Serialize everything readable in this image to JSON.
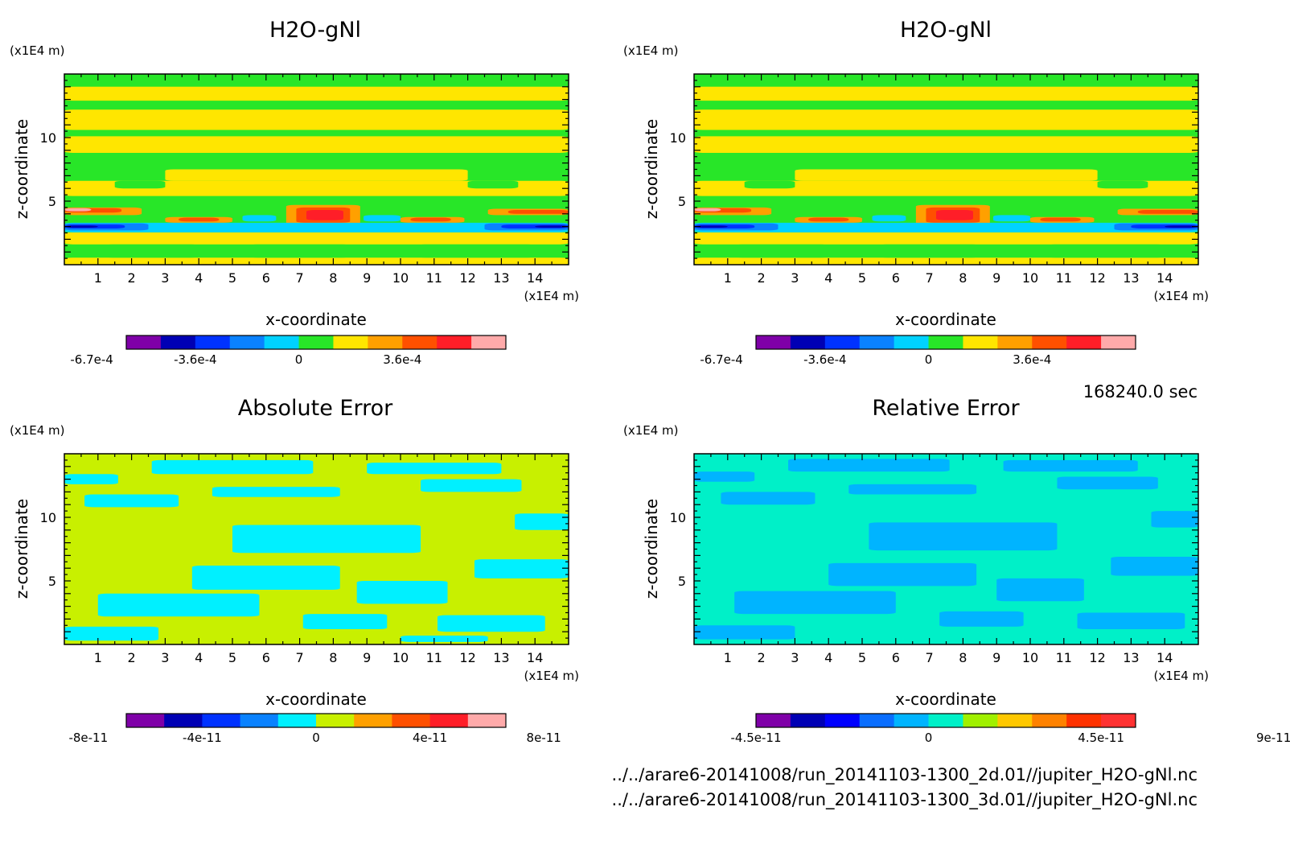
{
  "figure": {
    "time_label": "168240.0 sec",
    "footer": [
      "../../arare6-20141008/run_20141103-1300_2d.01//jupiter_H2O-gNl.nc",
      "../../arare6-20141008/run_20141103-1300_3d.01//jupiter_H2O-gNl.nc"
    ]
  },
  "chart_data": [
    {
      "type": "heatmap",
      "title": "H2O-gNl",
      "xlabel": "x-coordinate",
      "ylabel": "z-coordinate",
      "x_unit": "(x1E4 m)",
      "y_unit": "(x1E4 m)",
      "xlim": [
        0,
        15
      ],
      "ylim": [
        0,
        15
      ],
      "x_ticks": [
        "1",
        "2",
        "3",
        "4",
        "5",
        "6",
        "7",
        "8",
        "9",
        "10",
        "11",
        "12",
        "13",
        "14"
      ],
      "y_ticks": [
        "5",
        "10"
      ],
      "colorbar": {
        "colors": [
          "#7f00a8",
          "#0000b4",
          "#0032ff",
          "#0a82ff",
          "#00d2ff",
          "#28e628",
          "#ffe600",
          "#ffa000",
          "#ff5000",
          "#ff1e28",
          "#ffaaaa"
        ],
        "labels": [
          "-6.7e-4",
          "-3.6e-4",
          "0",
          "3.6e-4"
        ]
      },
      "background": "#28e628",
      "regions": [
        {
          "color": "#ffe600",
          "shapes": [
            [
              0,
              0,
              15,
              0.55
            ],
            [
              0,
              1.6,
              15,
              2.55
            ],
            [
              0,
              5.4,
              15,
              6.6
            ],
            [
              3,
              6.6,
              12,
              7.5
            ],
            [
              0,
              8.8,
              15,
              10.1
            ],
            [
              0,
              10.6,
              15,
              12.2
            ],
            [
              0,
              12.9,
              15,
              14
            ]
          ]
        },
        {
          "color": "#28e628",
          "shapes": [
            [
              1.2,
              0.55,
              4,
              1.6
            ],
            [
              5.5,
              0.55,
              8.5,
              1.6
            ],
            [
              10.5,
              0.55,
              14,
              1.6
            ],
            [
              1.5,
              6.0,
              3,
              6.6
            ],
            [
              12,
              6.0,
              13.5,
              6.6
            ]
          ]
        },
        {
          "color": "#ffa000",
          "shapes": [
            [
              0,
              3.9,
              2.3,
              4.5
            ],
            [
              3.0,
              3.3,
              5.0,
              3.75
            ],
            [
              6.6,
              3.1,
              8.8,
              4.7
            ],
            [
              10.0,
              3.3,
              11.9,
              3.75
            ],
            [
              12.6,
              3.9,
              15,
              4.4
            ]
          ]
        },
        {
          "color": "#ff5000",
          "shapes": [
            [
              0,
              4.1,
              1.7,
              4.45
            ],
            [
              3.4,
              3.4,
              4.6,
              3.7
            ],
            [
              6.9,
              3.3,
              8.5,
              4.5
            ],
            [
              10.3,
              3.4,
              11.5,
              3.7
            ],
            [
              13.2,
              4.0,
              15,
              4.3
            ]
          ]
        },
        {
          "color": "#ff1e28",
          "shapes": [
            [
              7.2,
              3.5,
              8.3,
              4.3
            ]
          ]
        },
        {
          "color": "#ffaaaa",
          "shapes": [
            [
              0,
              4.2,
              0.8,
              4.45
            ]
          ]
        },
        {
          "color": "#00d2ff",
          "shapes": [
            [
              0,
              2.55,
              15,
              3.3
            ],
            [
              5.3,
              3.4,
              6.3,
              3.9
            ],
            [
              8.9,
              3.4,
              10.0,
              3.9
            ]
          ]
        },
        {
          "color": "#0a82ff",
          "shapes": [
            [
              0,
              2.7,
              2.5,
              3.25
            ],
            [
              12.5,
              2.7,
              15,
              3.25
            ]
          ]
        },
        {
          "color": "#0032ff",
          "shapes": [
            [
              0,
              2.85,
              1.8,
              3.15
            ],
            [
              13.0,
              2.85,
              15,
              3.15
            ]
          ]
        },
        {
          "color": "#0000b4",
          "shapes": [
            [
              0,
              2.92,
              1.0,
              3.08
            ],
            [
              14.0,
              2.92,
              15,
              3.08
            ]
          ]
        }
      ]
    },
    {
      "type": "heatmap",
      "title": "H2O-gNl",
      "xlabel": "x-coordinate",
      "ylabel": "z-coordinate",
      "x_unit": "(x1E4 m)",
      "y_unit": "(x1E4 m)",
      "xlim": [
        0,
        15
      ],
      "ylim": [
        0,
        15
      ],
      "x_ticks": [
        "1",
        "2",
        "3",
        "4",
        "5",
        "6",
        "7",
        "8",
        "9",
        "10",
        "11",
        "12",
        "13",
        "14"
      ],
      "y_ticks": [
        "5",
        "10"
      ],
      "colorbar": {
        "colors": [
          "#7f00a8",
          "#0000b4",
          "#0032ff",
          "#0a82ff",
          "#00d2ff",
          "#28e628",
          "#ffe600",
          "#ffa000",
          "#ff5000",
          "#ff1e28",
          "#ffaaaa"
        ],
        "labels": [
          "-6.7e-4",
          "-3.6e-4",
          "0",
          "3.6e-4"
        ]
      },
      "background": "#28e628",
      "regions": [
        {
          "color": "#ffe600",
          "shapes": [
            [
              0,
              0,
              15,
              0.55
            ],
            [
              0,
              1.6,
              15,
              2.55
            ],
            [
              0,
              5.4,
              15,
              6.6
            ],
            [
              3,
              6.6,
              12,
              7.5
            ],
            [
              0,
              8.8,
              15,
              10.1
            ],
            [
              0,
              10.6,
              15,
              12.2
            ],
            [
              0,
              12.9,
              15,
              14
            ]
          ]
        },
        {
          "color": "#28e628",
          "shapes": [
            [
              1.2,
              0.55,
              4,
              1.6
            ],
            [
              5.5,
              0.55,
              8.5,
              1.6
            ],
            [
              10.5,
              0.55,
              14,
              1.6
            ],
            [
              1.5,
              6.0,
              3,
              6.6
            ],
            [
              12,
              6.0,
              13.5,
              6.6
            ]
          ]
        },
        {
          "color": "#ffa000",
          "shapes": [
            [
              0,
              3.9,
              2.3,
              4.5
            ],
            [
              3.0,
              3.3,
              5.0,
              3.75
            ],
            [
              6.6,
              3.1,
              8.8,
              4.7
            ],
            [
              10.0,
              3.3,
              11.9,
              3.75
            ],
            [
              12.6,
              3.9,
              15,
              4.4
            ]
          ]
        },
        {
          "color": "#ff5000",
          "shapes": [
            [
              0,
              4.1,
              1.7,
              4.45
            ],
            [
              3.4,
              3.4,
              4.6,
              3.7
            ],
            [
              6.9,
              3.3,
              8.5,
              4.5
            ],
            [
              10.3,
              3.4,
              11.5,
              3.7
            ],
            [
              13.2,
              4.0,
              15,
              4.3
            ]
          ]
        },
        {
          "color": "#ff1e28",
          "shapes": [
            [
              7.2,
              3.5,
              8.3,
              4.3
            ]
          ]
        },
        {
          "color": "#ffaaaa",
          "shapes": [
            [
              0,
              4.2,
              0.8,
              4.45
            ]
          ]
        },
        {
          "color": "#00d2ff",
          "shapes": [
            [
              0,
              2.55,
              15,
              3.3
            ],
            [
              5.3,
              3.4,
              6.3,
              3.9
            ],
            [
              8.9,
              3.4,
              10.0,
              3.9
            ]
          ]
        },
        {
          "color": "#0a82ff",
          "shapes": [
            [
              0,
              2.7,
              2.5,
              3.25
            ],
            [
              12.5,
              2.7,
              15,
              3.25
            ]
          ]
        },
        {
          "color": "#0032ff",
          "shapes": [
            [
              0,
              2.85,
              1.8,
              3.15
            ],
            [
              13.0,
              2.85,
              15,
              3.15
            ]
          ]
        },
        {
          "color": "#0000b4",
          "shapes": [
            [
              0,
              2.92,
              1.0,
              3.08
            ],
            [
              14.0,
              2.92,
              15,
              3.08
            ]
          ]
        }
      ]
    },
    {
      "type": "heatmap",
      "title": "Absolute Error",
      "xlabel": "x-coordinate",
      "ylabel": "z-coordinate",
      "x_unit": "(x1E4 m)",
      "y_unit": "(x1E4 m)",
      "xlim": [
        0,
        15
      ],
      "ylim": [
        0,
        15
      ],
      "x_ticks": [
        "1",
        "2",
        "3",
        "4",
        "5",
        "6",
        "7",
        "8",
        "9",
        "10",
        "11",
        "12",
        "13",
        "14"
      ],
      "y_ticks": [
        "5",
        "10"
      ],
      "colorbar": {
        "colors": [
          "#7f00a8",
          "#0000b4",
          "#0032ff",
          "#0a82ff",
          "#00f0ff",
          "#c8f000",
          "#ffa000",
          "#ff5000",
          "#ff1e28",
          "#ffaaaa"
        ],
        "labels": [
          "-8e-11",
          "-4e-11",
          "0",
          "4e-11",
          "8e-11"
        ]
      },
      "background": "#c8f000",
      "regions": [
        {
          "color": "#00f0ff",
          "shapes": [
            [
              0,
              0.3,
              2.8,
              1.4
            ],
            [
              1.0,
              2.2,
              5.8,
              4.0
            ],
            [
              3.8,
              4.3,
              8.2,
              6.2
            ],
            [
              5.0,
              7.2,
              10.6,
              9.4
            ],
            [
              8.7,
              3.2,
              11.4,
              5.0
            ],
            [
              7.1,
              1.2,
              9.6,
              2.4
            ],
            [
              11.1,
              1.0,
              14.3,
              2.3
            ],
            [
              12.2,
              5.2,
              15.0,
              6.7
            ],
            [
              0.6,
              10.8,
              3.4,
              11.8
            ],
            [
              4.4,
              11.6,
              8.2,
              12.4
            ],
            [
              10.6,
              12.0,
              13.6,
              13.0
            ],
            [
              2.6,
              13.4,
              7.4,
              14.5
            ],
            [
              9.0,
              13.4,
              13.0,
              14.3
            ],
            [
              13.4,
              9.0,
              15.0,
              10.3
            ],
            [
              0,
              12.6,
              1.6,
              13.4
            ],
            [
              10.0,
              0.2,
              12.6,
              0.7
            ]
          ]
        }
      ]
    },
    {
      "type": "heatmap",
      "title": "Relative Error",
      "xlabel": "x-coordinate",
      "ylabel": "z-coordinate",
      "x_unit": "(x1E4 m)",
      "y_unit": "(x1E4 m)",
      "xlim": [
        0,
        15
      ],
      "ylim": [
        0,
        15
      ],
      "x_ticks": [
        "1",
        "2",
        "3",
        "4",
        "5",
        "6",
        "7",
        "8",
        "9",
        "10",
        "11",
        "12",
        "13",
        "14"
      ],
      "y_ticks": [
        "5",
        "10"
      ],
      "colorbar": {
        "colors": [
          "#7f00a8",
          "#0000b4",
          "#0000ff",
          "#0a6eff",
          "#00b4ff",
          "#00f0c8",
          "#a0f000",
          "#ffc800",
          "#ff8200",
          "#ff3200",
          "#ff3232"
        ],
        "labels": [
          "-4.5e-11",
          "0",
          "4.5e-11",
          "9e-11"
        ]
      },
      "background": "#00f0c8",
      "regions": [
        {
          "color": "#00b4ff",
          "shapes": [
            [
              0,
              0.4,
              3.0,
              1.5
            ],
            [
              1.2,
              2.4,
              6.0,
              4.2
            ],
            [
              4.0,
              4.6,
              8.4,
              6.4
            ],
            [
              5.2,
              7.4,
              10.8,
              9.6
            ],
            [
              9.0,
              3.4,
              11.6,
              5.2
            ],
            [
              7.3,
              1.4,
              9.8,
              2.6
            ],
            [
              11.4,
              1.2,
              14.6,
              2.5
            ],
            [
              12.4,
              5.4,
              15.0,
              6.9
            ],
            [
              0.8,
              11.0,
              3.6,
              12.0
            ],
            [
              4.6,
              11.8,
              8.4,
              12.6
            ],
            [
              10.8,
              12.2,
              13.8,
              13.2
            ],
            [
              2.8,
              13.6,
              7.6,
              14.6
            ],
            [
              9.2,
              13.6,
              13.2,
              14.5
            ],
            [
              13.6,
              9.2,
              15.0,
              10.5
            ],
            [
              0,
              12.8,
              1.8,
              13.6
            ]
          ]
        }
      ]
    }
  ]
}
